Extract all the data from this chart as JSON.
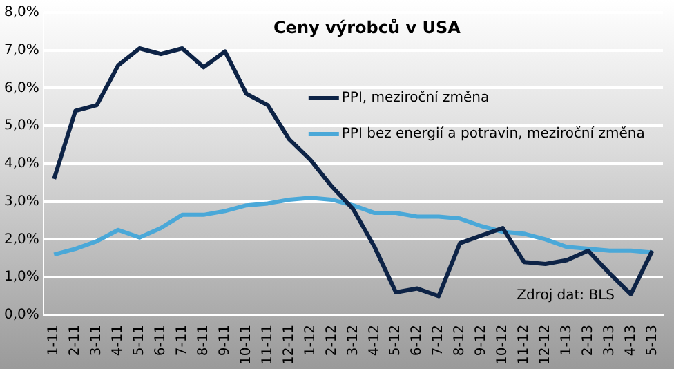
{
  "chart_data": {
    "type": "line",
    "title": "Ceny výrobců v USA",
    "categories": [
      "1-11",
      "2-11",
      "3-11",
      "4-11",
      "5-11",
      "6-11",
      "7-11",
      "8-11",
      "9-11",
      "10-11",
      "11-11",
      "12-11",
      "1-12",
      "2-12",
      "3-12",
      "4-12",
      "5-12",
      "6-12",
      "7-12",
      "8-12",
      "9-12",
      "10-12",
      "11-12",
      "12-12",
      "1-13",
      "2-13",
      "3-13",
      "4-13",
      "5-13"
    ],
    "series": [
      {
        "name": "PPI, meziroční změna",
        "color": "#0d2346",
        "values": [
          3.6,
          5.4,
          5.55,
          6.6,
          7.05,
          6.9,
          7.05,
          6.55,
          6.97,
          5.85,
          5.55,
          4.65,
          4.1,
          3.4,
          2.8,
          1.8,
          0.6,
          0.7,
          0.5,
          1.9,
          2.1,
          2.3,
          1.4,
          1.35,
          1.45,
          1.7,
          1.1,
          0.55,
          1.7
        ]
      },
      {
        "name": "PPI bez energií a potravin, meziroční změna",
        "color": "#4aa8d8",
        "values": [
          1.6,
          1.75,
          1.95,
          2.25,
          2.05,
          2.3,
          2.65,
          2.65,
          2.75,
          2.9,
          2.95,
          3.05,
          3.1,
          3.05,
          2.9,
          2.7,
          2.7,
          2.6,
          2.6,
          2.55,
          2.35,
          2.2,
          2.15,
          2.0,
          1.8,
          1.75,
          1.7,
          1.7,
          1.65
        ]
      }
    ],
    "ylim": [
      0,
      8
    ],
    "yticks": [
      {
        "value": 0,
        "label": "0,0%"
      },
      {
        "value": 1,
        "label": "1,0%"
      },
      {
        "value": 2,
        "label": "2,0%"
      },
      {
        "value": 3,
        "label": "3,0%"
      },
      {
        "value": 4,
        "label": "4,0%"
      },
      {
        "value": 5,
        "label": "5,0%"
      },
      {
        "value": 6,
        "label": "6,0%"
      },
      {
        "value": 7,
        "label": "7,0%"
      },
      {
        "value": 8,
        "label": "8,0%"
      }
    ],
    "grid": "y",
    "legend": "right",
    "marker": "none",
    "line_style": "solid",
    "annotations": [
      "Zdroj dat: BLS"
    ]
  }
}
